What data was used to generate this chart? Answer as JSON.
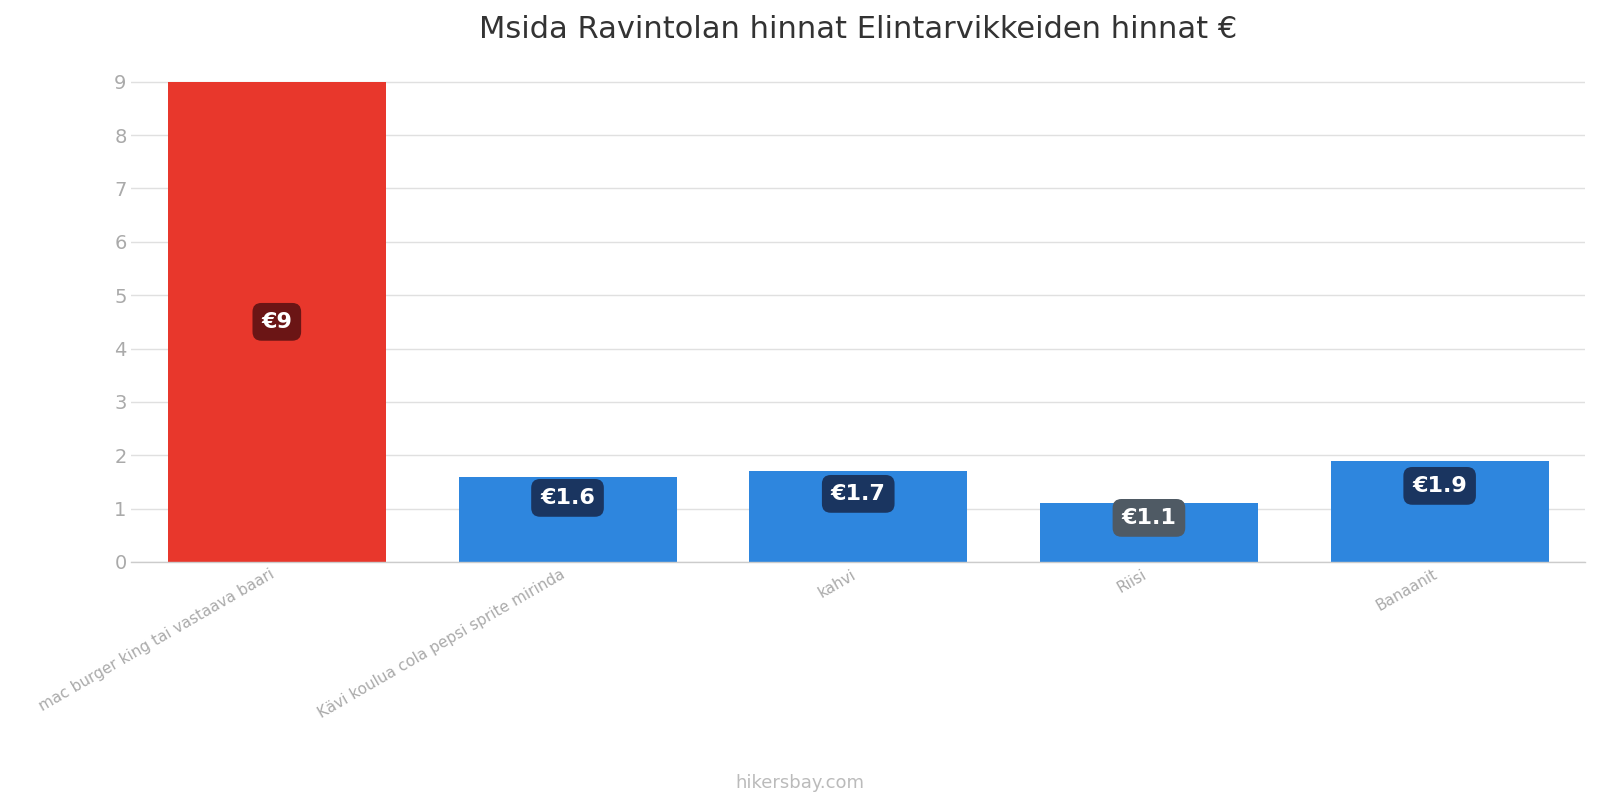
{
  "title": "Msida Ravintolan hinnat Elintarvikkeiden hinnat €",
  "categories": [
    "mac burger king tai vastaava baari",
    "Kävi koulua cola pepsi sprite mirinda",
    "kahvi",
    "Riisi",
    "Banaanit"
  ],
  "values": [
    9,
    1.6,
    1.7,
    1.1,
    1.9
  ],
  "bar_colors": [
    "#e8372c",
    "#2e86de",
    "#2e86de",
    "#2e86de",
    "#2e86de"
  ],
  "label_bg_colors": [
    "#6b1515",
    "#1a3560",
    "#1a3560",
    "#4f5a64",
    "#1a3560"
  ],
  "labels": [
    "€9",
    "€1.6",
    "€1.7",
    "€1.1",
    "€1.9"
  ],
  "ylim": [
    0,
    9.3
  ],
  "yticks": [
    0,
    1,
    2,
    3,
    4,
    5,
    6,
    7,
    8,
    9
  ],
  "footer_text": "hikersbay.com",
  "background_color": "#ffffff",
  "grid_color": "#e0e0e0",
  "title_fontsize": 22,
  "tick_fontsize": 14,
  "label_fontsize": 16,
  "footer_fontsize": 13,
  "xtick_fontsize": 11
}
